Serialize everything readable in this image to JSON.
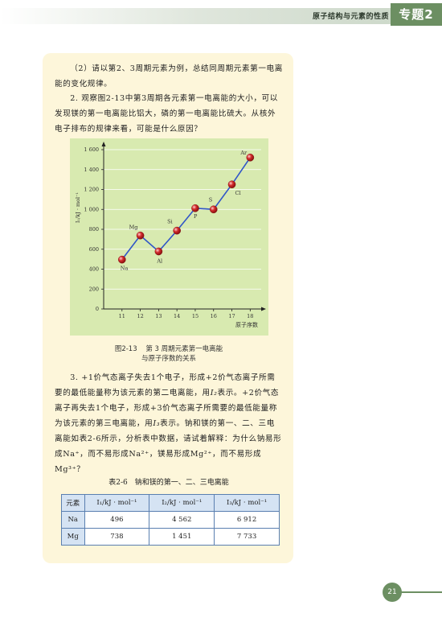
{
  "header": {
    "running_title": "原子结构与元素的性质",
    "badge": "专题2"
  },
  "questions": {
    "q2_text": "（2）请以第2、3周期元素为例，总结同周期元素第一电离能的变化规律。",
    "q3_text": "2. 观察图2-13中第3周期各元素第一电离能的大小，可以发现镁的第一电离能比铝大，磷的第一电离能比硫大。从核外电子排布的规律来看，可能是什么原因？"
  },
  "chart_data": {
    "type": "line",
    "x": [
      11,
      12,
      13,
      14,
      15,
      16,
      17,
      18
    ],
    "values": [
      496,
      738,
      578,
      787,
      1012,
      1000,
      1251,
      1521
    ],
    "point_labels": [
      "Na",
      "Mg",
      "Al",
      "Si",
      "P",
      "S",
      "Cl",
      "Ar"
    ],
    "x_ticks": [
      "11",
      "12",
      "13",
      "14",
      "15",
      "16",
      "17",
      "18"
    ],
    "y_ticks": [
      "0",
      "200",
      "400",
      "600",
      "800",
      "1 000",
      "1 200",
      "1 400",
      "1 600"
    ],
    "ylim": [
      0,
      1600
    ],
    "xlim": [
      10,
      18.6
    ],
    "xlabel": "原子序数",
    "ylabel": "I₁/kJ · mol⁻¹",
    "line_color": "#2f55c8",
    "point_color": "#d42c2c",
    "background": "#d8eab0"
  },
  "figure": {
    "number": "图2-13",
    "title_line1": "第 3 周期元素第一电离能",
    "title_line2": "与原子序数的关系"
  },
  "para3": {
    "t1": "3. +1价气态离子失去1个电子，形成+2价气态离子所需要的最低能量称为该元素的第二电离能，用",
    "i2": "I₂",
    "t2": "表示。+2价气态离子再失去1个电子，形成+3价气态离子所需要的最低能量称为该元素的第三电离能，用",
    "i3": "I₃",
    "t3": "表示。钠和镁的第一、二、三电离能如表2-6所示，分析表中数据，请试着解释：为什么钠易形成Na⁺，而不易形成Na²⁺，镁易形成Mg²⁺，而不易形成Mg³⁺？"
  },
  "table": {
    "title": "表2-6　钠和镁的第一、二、三电离能",
    "headers": [
      "元素",
      "I₁/kJ · mol⁻¹",
      "I₂/kJ · mol⁻¹",
      "I₃/kJ · mol⁻¹"
    ],
    "rows": [
      [
        "Na",
        "496",
        "4 562",
        "6 912"
      ],
      [
        "Mg",
        "738",
        "1 451",
        "7 733"
      ]
    ]
  },
  "footer": {
    "page_number": "21"
  }
}
